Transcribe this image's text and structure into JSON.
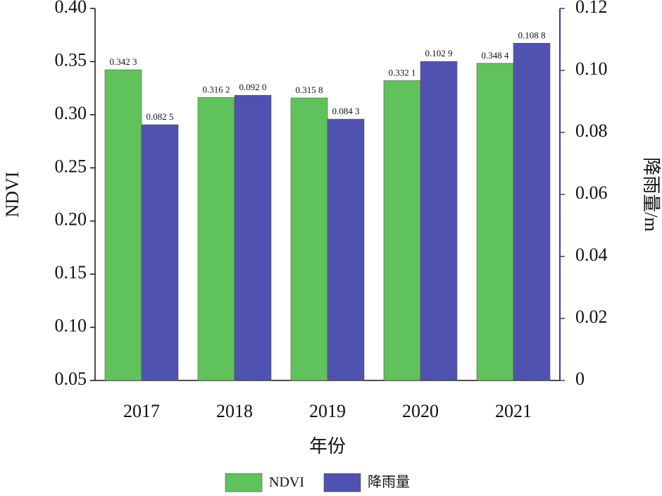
{
  "chart_data": {
    "type": "bar",
    "x_label": "年份",
    "y_label": "NDVI",
    "y2_label": "降雨量/m",
    "categories": [
      "2017",
      "2018",
      "2019",
      "2020",
      "2021"
    ],
    "series": [
      {
        "name": "NDVI",
        "color": "#5fc25a",
        "values": [
          0.3423,
          0.3162,
          0.3158,
          0.3321,
          0.3484
        ],
        "value_labels": [
          "0.342 3",
          "0.316 2",
          "0.315 8",
          "0.332 1",
          "0.348 4"
        ]
      },
      {
        "name": "降雨量",
        "color": "#4f52b0",
        "axis": "y2",
        "values": [
          0.0825,
          0.092,
          0.0843,
          0.1029,
          0.1088
        ],
        "value_labels": [
          "0.082 5",
          "0.092 0",
          "0.084 3",
          "0.102 9",
          "0.108 8"
        ]
      }
    ],
    "ylim": [
      0.05,
      0.4
    ],
    "yticks": [
      0.05,
      {
        "value": 0.1,
        "label": "0.10"
      },
      0.15,
      {
        "value": 0.2,
        "label": "0.20"
      },
      0.25,
      {
        "value": 0.3,
        "label": "0.30"
      },
      0.35,
      {
        "value": 0.4,
        "label": "0.40"
      }
    ],
    "y2lim": [
      0,
      0.12
    ],
    "y2ticks": [
      0,
      0.02,
      0.04,
      0.06,
      0.08,
      {
        "value": 0.1,
        "label": "0.10"
      },
      0.12
    ],
    "legend": "bottom"
  }
}
